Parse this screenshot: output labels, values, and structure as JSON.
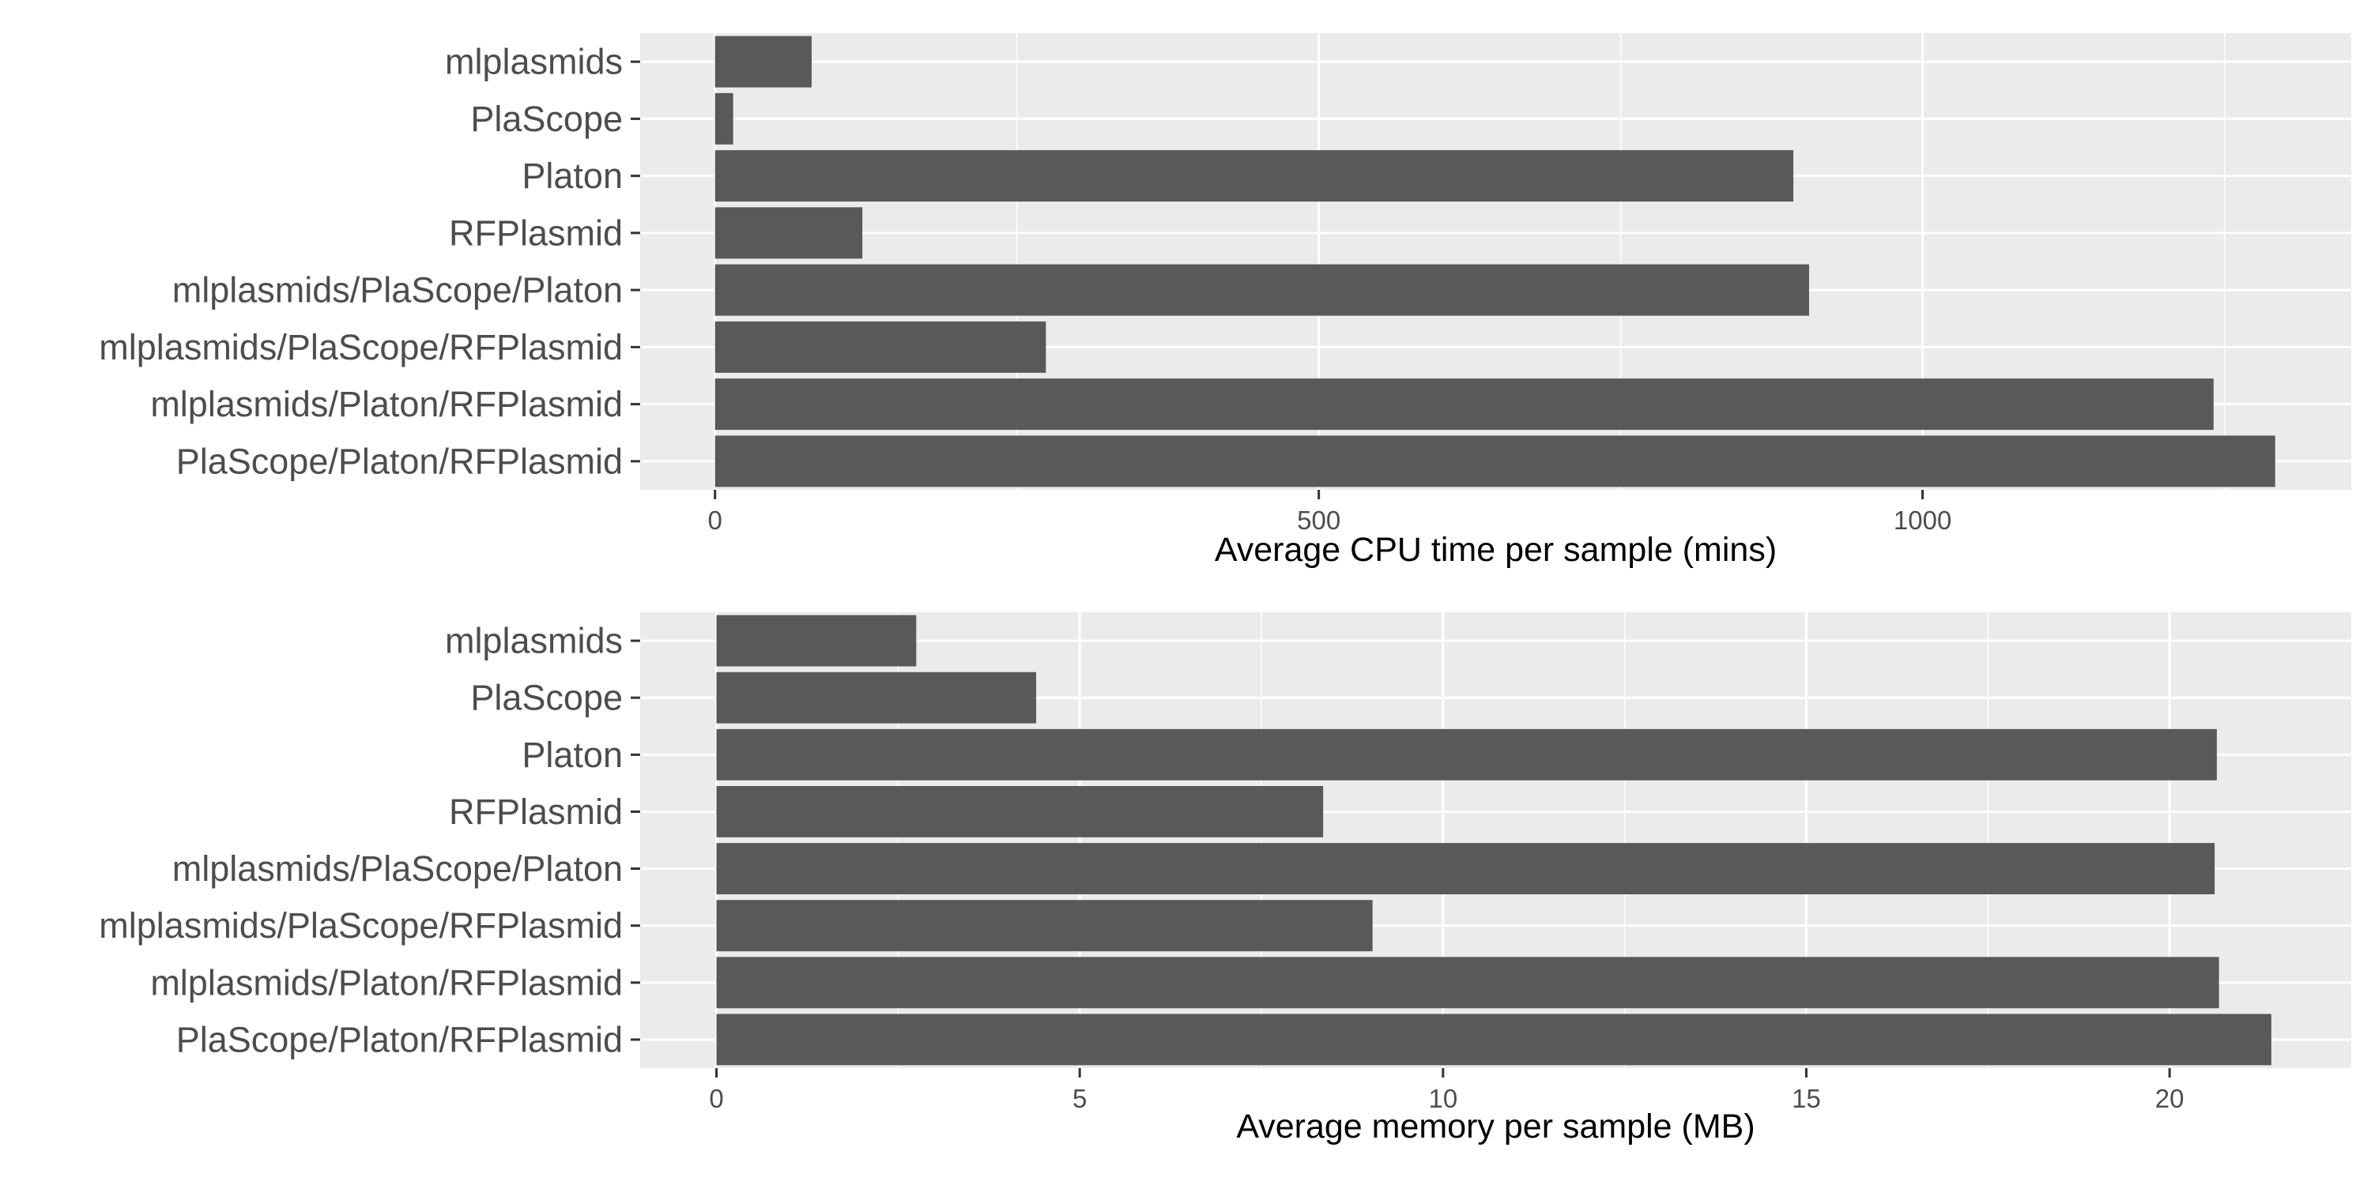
{
  "colors": {
    "panel_background": "#ebebeb",
    "grid_major": "#ffffff",
    "bar_fill": "#595959",
    "tick_text": "#4d4d4d",
    "axis_title": "#000000"
  },
  "chart_data": [
    {
      "type": "bar",
      "orientation": "horizontal",
      "categories": [
        "mlplasmids",
        "PlaScope",
        "Platon",
        "RFPlasmid",
        "mlplasmids/PlaScope/Platon",
        "mlplasmids/PlaScope/RFPlasmid",
        "mlplasmids/Platon/RFPlasmid",
        "PlaScope/Platon/RFPlasmid"
      ],
      "values": [
        80,
        15,
        893,
        122,
        906,
        274,
        1241,
        1292
      ],
      "xlabel": "Average CPU time per sample (mins)",
      "xlim": [
        -62,
        1355
      ],
      "xticks": [
        0,
        500,
        1000
      ],
      "grid": true
    },
    {
      "type": "bar",
      "orientation": "horizontal",
      "categories": [
        "mlplasmids",
        "PlaScope",
        "Platon",
        "RFPlasmid",
        "mlplasmids/PlaScope/Platon",
        "mlplasmids/PlaScope/RFPlasmid",
        "mlplasmids/Platon/RFPlasmid",
        "PlaScope/Platon/RFPlasmid"
      ],
      "values": [
        2.75,
        4.4,
        20.65,
        8.35,
        20.62,
        9.03,
        20.68,
        21.4
      ],
      "xlabel": "Average memory per sample (MB)",
      "xlim": [
        -1.05,
        22.5
      ],
      "xticks": [
        0,
        5,
        10,
        15,
        20
      ],
      "grid": true
    }
  ]
}
